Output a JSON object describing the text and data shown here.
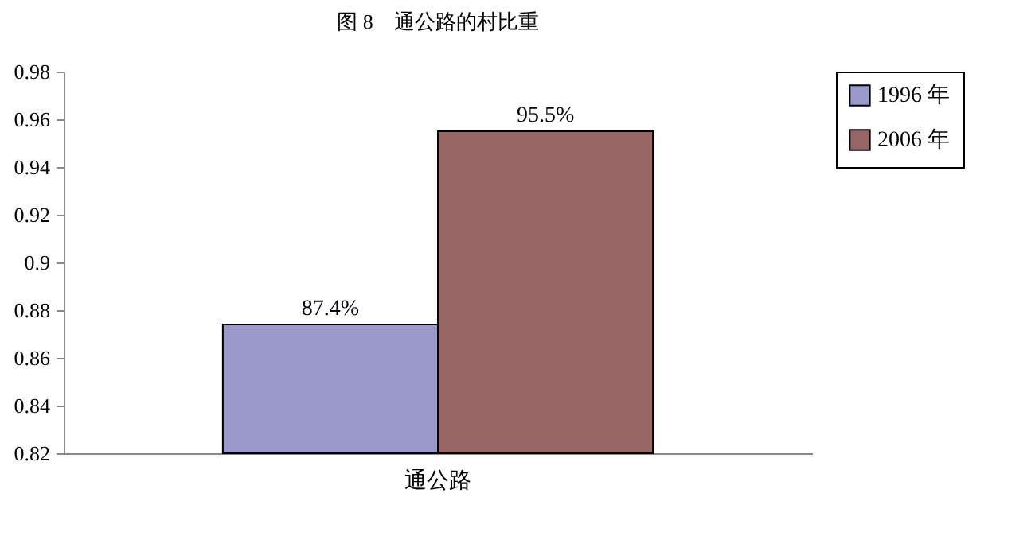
{
  "chart_data": {
    "type": "bar",
    "title": "图 8　通公路的村比重",
    "categories": [
      "通公路"
    ],
    "series": [
      {
        "name": "1996 年",
        "color": "#9999cc",
        "values": [
          0.874
        ],
        "value_labels": [
          "87.4%"
        ]
      },
      {
        "name": "2006 年",
        "color": "#996666",
        "values": [
          0.955
        ],
        "value_labels": [
          "95.5%"
        ]
      }
    ],
    "ylim": [
      0.82,
      0.98
    ],
    "yticks": [
      0.82,
      0.84,
      0.86,
      0.88,
      {
        "value": 0.9,
        "label": "0.9"
      },
      0.92,
      0.94,
      0.96,
      0.98
    ],
    "grid": false,
    "legend": "right"
  }
}
